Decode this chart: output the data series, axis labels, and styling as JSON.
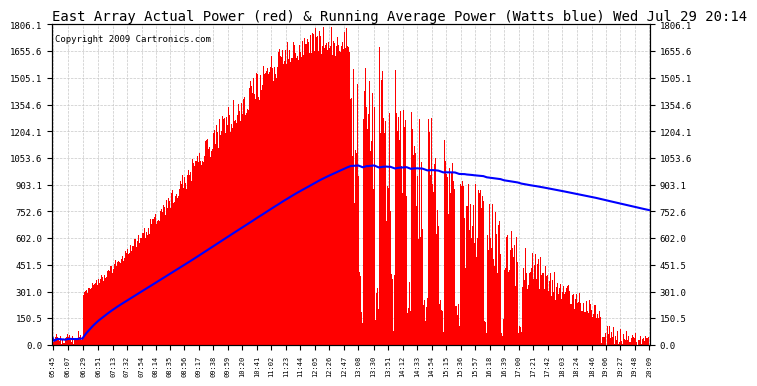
{
  "title": "East Array Actual Power (red) & Running Average Power (Watts blue) Wed Jul 29 20:14",
  "copyright": "Copyright 2009 Cartronics.com",
  "y_min": 0.0,
  "y_max": 1806.1,
  "y_ticks": [
    0.0,
    150.5,
    301.0,
    451.5,
    602.0,
    752.6,
    903.1,
    1053.6,
    1204.1,
    1354.6,
    1505.1,
    1655.6,
    1806.1
  ],
  "x_labels": [
    "05:45",
    "06:07",
    "06:29",
    "06:51",
    "07:13",
    "07:32",
    "07:54",
    "08:14",
    "08:35",
    "08:56",
    "09:17",
    "09:38",
    "09:59",
    "10:20",
    "10:41",
    "11:02",
    "11:23",
    "11:44",
    "12:05",
    "12:26",
    "12:47",
    "13:08",
    "13:30",
    "13:51",
    "14:12",
    "14:33",
    "14:54",
    "15:15",
    "15:36",
    "15:57",
    "16:18",
    "16:39",
    "17:00",
    "17:21",
    "17:42",
    "18:03",
    "18:24",
    "18:46",
    "19:06",
    "19:27",
    "19:48",
    "20:09"
  ],
  "n_labels": 42,
  "bg_color": "#ffffff",
  "plot_bg_color": "#ffffff",
  "grid_color": "#c8c8c8",
  "bar_color": "#ff0000",
  "line_color": "#0000ff",
  "title_fontsize": 10,
  "copyright_fontsize": 6.5
}
